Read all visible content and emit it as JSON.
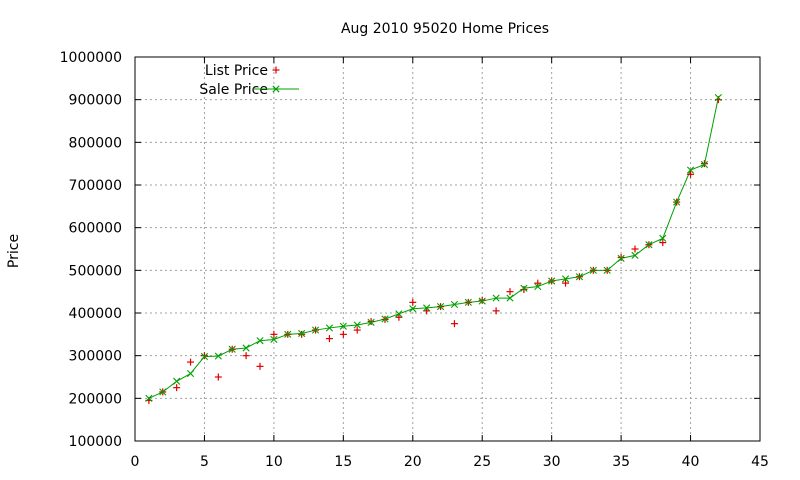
{
  "chart_data": {
    "type": "line",
    "title": "Aug 2010 95020 Home Prices",
    "xlabel": "",
    "ylabel": "Price",
    "xlim": [
      0,
      45
    ],
    "ylim": [
      100000,
      1000000
    ],
    "xticks": [
      0,
      5,
      10,
      15,
      20,
      25,
      30,
      35,
      40,
      45
    ],
    "yticks": [
      100000,
      200000,
      300000,
      400000,
      500000,
      600000,
      700000,
      800000,
      900000,
      1000000
    ],
    "grid": true,
    "legend_position": "top-left",
    "series": [
      {
        "name": "List Price",
        "style": "points",
        "marker": "plus",
        "color": "#e00000",
        "x": [
          1,
          2,
          3,
          4,
          5,
          6,
          7,
          8,
          9,
          10,
          11,
          12,
          13,
          14,
          15,
          16,
          17,
          18,
          19,
          20,
          21,
          22,
          23,
          24,
          25,
          26,
          27,
          28,
          29,
          30,
          31,
          32,
          33,
          34,
          35,
          36,
          37,
          38,
          39,
          40,
          41,
          42
        ],
        "values": [
          195000,
          215000,
          225000,
          285000,
          300000,
          250000,
          315000,
          300000,
          275000,
          350000,
          350000,
          350000,
          360000,
          340000,
          350000,
          360000,
          380000,
          385000,
          390000,
          425000,
          405000,
          415000,
          375000,
          425000,
          430000,
          405000,
          450000,
          455000,
          470000,
          475000,
          470000,
          485000,
          500000,
          500000,
          530000,
          550000,
          560000,
          565000,
          660000,
          725000,
          750000,
          900000
        ]
      },
      {
        "name": "Sale Price",
        "style": "linespoints",
        "marker": "cross",
        "color": "#00a000",
        "x": [
          1,
          2,
          3,
          4,
          5,
          6,
          7,
          8,
          9,
          10,
          11,
          12,
          13,
          14,
          15,
          16,
          17,
          18,
          19,
          20,
          21,
          22,
          23,
          24,
          25,
          26,
          27,
          28,
          29,
          30,
          31,
          32,
          33,
          34,
          35,
          36,
          37,
          38,
          39,
          40,
          41,
          42
        ],
        "values": [
          200000,
          215000,
          240000,
          258000,
          298000,
          299000,
          315000,
          318000,
          335000,
          338000,
          350000,
          352000,
          360000,
          365000,
          369000,
          372000,
          378000,
          386000,
          398000,
          410000,
          412000,
          415000,
          420000,
          425000,
          428000,
          435000,
          435000,
          458000,
          462000,
          475000,
          480000,
          485000,
          500000,
          500000,
          528000,
          535000,
          560000,
          575000,
          660000,
          735000,
          748000,
          905000
        ]
      }
    ]
  }
}
